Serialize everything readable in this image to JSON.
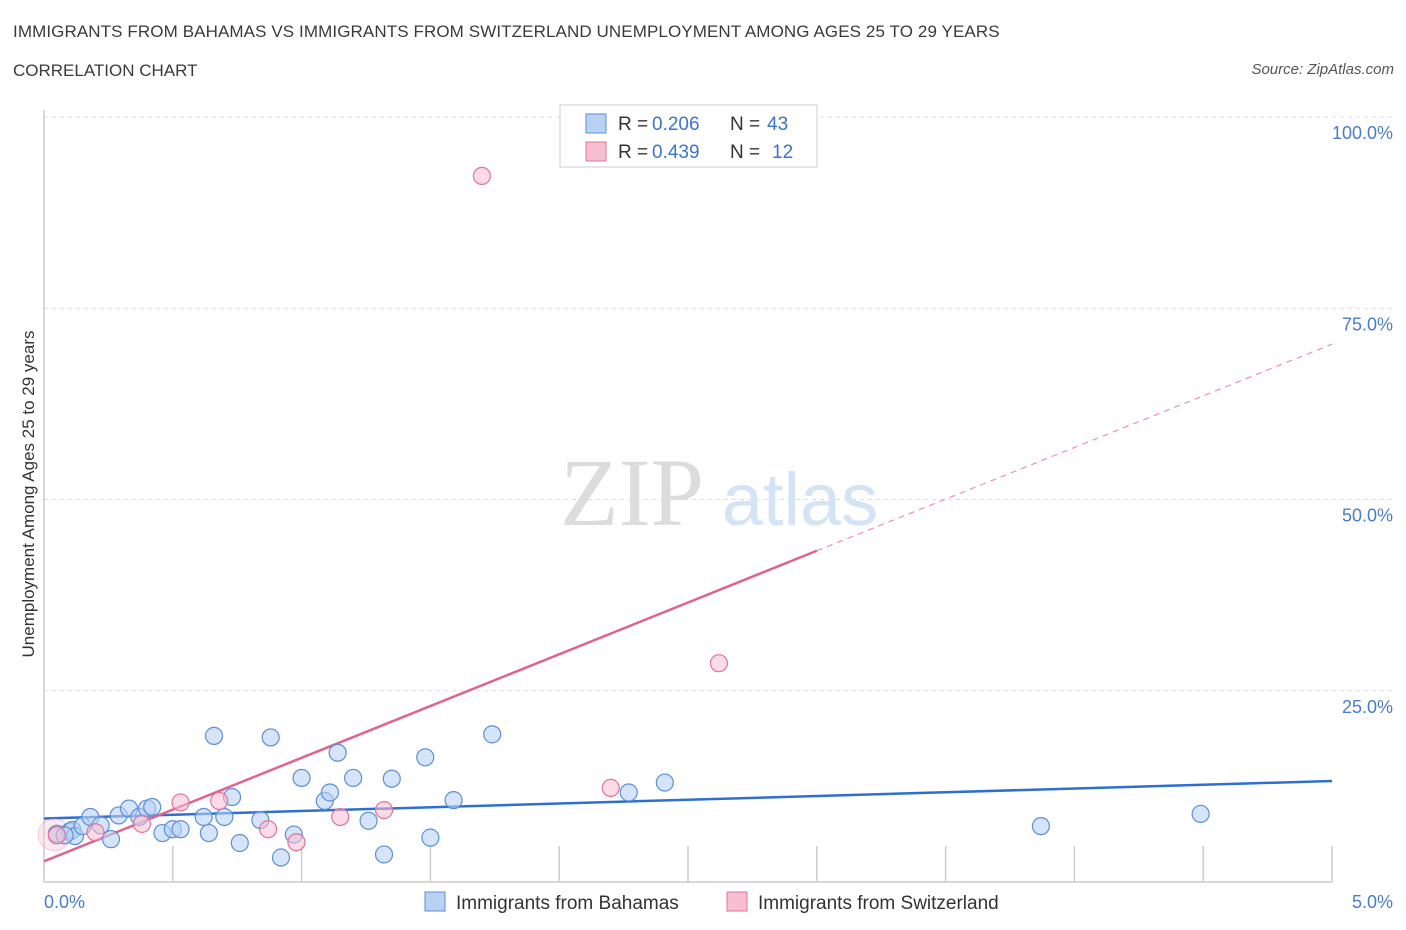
{
  "header": {
    "title": "IMMIGRANTS FROM BAHAMAS VS IMMIGRANTS FROM SWITZERLAND UNEMPLOYMENT AMONG AGES 25 TO 29 YEARS",
    "subtitle": "CORRELATION CHART",
    "source": "Source: ZipAtlas.com"
  },
  "watermark": {
    "zip": "ZIP",
    "atlas": "atlas"
  },
  "legend": {
    "rows": [
      {
        "r_label": "R =",
        "r_value": "0.206",
        "n_label": "N =",
        "n_value": "43"
      },
      {
        "r_label": "R =",
        "r_value": "0.439",
        "n_label": "N =",
        "n_value": "12"
      }
    ]
  },
  "colors": {
    "blue": "#5b8fd6",
    "blue_fill": "#b9d2f3",
    "blue_line": "#2f6fcf",
    "pink": "#e6709a",
    "pink_fill": "#f7c0d2",
    "pink_line": "#e0628f",
    "axis_label": "#4a7cc8"
  },
  "chart_data": {
    "type": "scatter",
    "title": "IMMIGRANTS FROM BAHAMAS VS IMMIGRANTS FROM SWITZERLAND UNEMPLOYMENT AMONG AGES 25 TO 29 YEARS",
    "xlabel": "",
    "ylabel": "Unemployment Among Ages 25 to 29 years",
    "xlim": [
      0,
      5
    ],
    "ylim": [
      0,
      100
    ],
    "x_tick_labels": [
      "0.0%",
      "5.0%"
    ],
    "y_tick_labels": [
      "25.0%",
      "50.0%",
      "75.0%",
      "100.0%"
    ],
    "y_ticks": [
      25,
      50,
      75,
      100
    ],
    "grid": true,
    "legend_position": "top-center",
    "series": [
      {
        "name": "Immigrants from Bahamas",
        "color": "#5b8fd6",
        "R": 0.206,
        "N": 43,
        "trend": {
          "x": [
            0,
            5
          ],
          "y": [
            8.3,
            13.2
          ],
          "extends": false
        },
        "points": [
          [
            0.05,
            6.3
          ],
          [
            0.1,
            6.6
          ],
          [
            0.11,
            6.8
          ],
          [
            0.12,
            6.0
          ],
          [
            0.15,
            7.3
          ],
          [
            0.18,
            8.5
          ],
          [
            0.22,
            7.4
          ],
          [
            0.26,
            5.6
          ],
          [
            0.29,
            8.7
          ],
          [
            0.33,
            9.6
          ],
          [
            0.37,
            8.5
          ],
          [
            0.4,
            9.6
          ],
          [
            0.42,
            9.8
          ],
          [
            0.46,
            6.4
          ],
          [
            0.5,
            6.9
          ],
          [
            0.53,
            6.9
          ],
          [
            0.62,
            8.5
          ],
          [
            0.64,
            6.4
          ],
          [
            0.66,
            19.1
          ],
          [
            0.7,
            8.5
          ],
          [
            0.73,
            11.1
          ],
          [
            0.76,
            5.1
          ],
          [
            0.84,
            8.1
          ],
          [
            0.88,
            18.9
          ],
          [
            0.92,
            3.2
          ],
          [
            0.97,
            6.2
          ],
          [
            1.0,
            13.6
          ],
          [
            1.09,
            10.6
          ],
          [
            1.11,
            11.7
          ],
          [
            1.14,
            16.9
          ],
          [
            1.2,
            13.6
          ],
          [
            1.26,
            8.0
          ],
          [
            1.32,
            3.6
          ],
          [
            1.35,
            13.5
          ],
          [
            1.48,
            16.3
          ],
          [
            1.5,
            5.8
          ],
          [
            1.59,
            10.7
          ],
          [
            1.74,
            19.3
          ],
          [
            2.27,
            11.7
          ],
          [
            2.41,
            13.0
          ],
          [
            3.87,
            7.3
          ],
          [
            4.49,
            8.9
          ],
          [
            0.08,
            6.1
          ]
        ]
      },
      {
        "name": "Immigrants from Switzerland",
        "color": "#e6709a",
        "R": 0.439,
        "N": 12,
        "trend": {
          "x": [
            0,
            3.0
          ],
          "y": [
            2.7,
            43.3
          ],
          "dashed_to": [
            5,
            70.3
          ]
        },
        "points": [
          [
            0.05,
            6.1
          ],
          [
            0.2,
            6.5
          ],
          [
            0.38,
            7.6
          ],
          [
            0.53,
            10.4
          ],
          [
            0.68,
            10.6
          ],
          [
            0.87,
            6.9
          ],
          [
            0.98,
            5.2
          ],
          [
            1.15,
            8.5
          ],
          [
            1.32,
            9.4
          ],
          [
            1.7,
            92.3
          ],
          [
            2.2,
            12.3
          ],
          [
            2.62,
            28.6
          ]
        ]
      }
    ]
  },
  "bottom_legend": {
    "items": [
      {
        "label": "Immigrants from Bahamas"
      },
      {
        "label": "Immigrants from Switzerland"
      }
    ]
  }
}
